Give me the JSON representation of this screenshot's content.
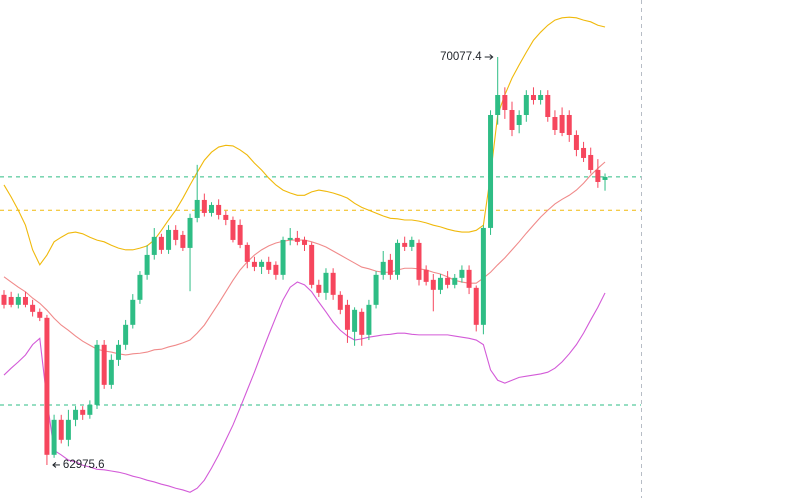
{
  "chart_data": {
    "type": "candlestick",
    "up_color": "#2ebd85",
    "down_color": "#f6465d",
    "ylim": [
      62400,
      71070
    ],
    "open": [
      65937,
      65900,
      65763,
      65900,
      65763,
      65641,
      65537,
      63152,
      63761,
      63413,
      63761,
      63935,
      63848,
      64022,
      65067,
      64370,
      64805,
      65067,
      65415,
      65850,
      66285,
      66632,
      66946,
      66720,
      67067,
      66980,
      66754,
      67276,
      67589,
      67363,
      67502,
      67328,
      67241,
      67154,
      66806,
      66511,
      66424,
      66511,
      66459,
      66285,
      66893,
      66928,
      66893,
      66806,
      66111,
      65972,
      66320,
      65937,
      65763,
      65293,
      65641,
      65241,
      65763,
      66285,
      66546,
      66285,
      66841,
      66772,
      66841,
      66372,
      66198,
      66024,
      66233,
      66111,
      66233,
      66372,
      66059,
      65415,
      67102,
      69068,
      69416,
      69155,
      68894,
      69068,
      69416,
      69329,
      69416,
      69033,
      69068,
      69068,
      68720,
      68494,
      68372,
      68111,
      67937
    ],
    "high": [
      66020,
      65990,
      65960,
      65990,
      65850,
      65700,
      65589,
      63850,
      63848,
      63935,
      64000,
      64000,
      64100,
      65150,
      65150,
      64900,
      65150,
      65500,
      65950,
      66350,
      66800,
      67100,
      67000,
      67150,
      67150,
      67050,
      67350,
      68200,
      67700,
      67550,
      67600,
      67400,
      67300,
      67250,
      66850,
      66600,
      66550,
      66600,
      66520,
      66950,
      67100,
      67050,
      66950,
      66850,
      66200,
      66400,
      66400,
      66000,
      65850,
      65720,
      65700,
      65850,
      66350,
      66700,
      66650,
      66900,
      66950,
      66950,
      66900,
      66450,
      66300,
      66300,
      66350,
      66300,
      66450,
      66450,
      66100,
      67150,
      69150,
      70077.4,
      69550,
      69300,
      69150,
      69500,
      69550,
      69500,
      69500,
      69150,
      69200,
      69150,
      68800,
      68600,
      68500,
      68300,
      68050
    ],
    "low": [
      65700,
      65720,
      65700,
      65720,
      65560,
      65480,
      62975.6,
      63100,
      63350,
      63300,
      63650,
      63760,
      63780,
      63950,
      64300,
      64300,
      64700,
      64980,
      65350,
      65780,
      66200,
      66550,
      66650,
      66650,
      66800,
      66700,
      66000,
      67200,
      67300,
      67300,
      67250,
      67150,
      66850,
      66750,
      66400,
      66350,
      66300,
      66300,
      66200,
      66200,
      66800,
      66800,
      66700,
      66050,
      65900,
      65850,
      65850,
      65600,
      65100,
      65050,
      65050,
      65150,
      65700,
      66200,
      66200,
      66200,
      66700,
      66700,
      66100,
      66100,
      65650,
      65950,
      66050,
      66050,
      66150,
      65950,
      65300,
      65250,
      66980,
      68900,
      69000,
      68700,
      68750,
      68950,
      69250,
      69250,
      68950,
      68720,
      68700,
      68600,
      68350,
      68250,
      68050,
      67800,
      67750
    ],
    "close": [
      65763,
      65763,
      65900,
      65763,
      65641,
      65537,
      63152,
      63761,
      63413,
      63761,
      63935,
      63848,
      64022,
      65067,
      64370,
      64805,
      65067,
      65415,
      65850,
      66285,
      66632,
      66946,
      66720,
      67067,
      66893,
      66754,
      67276,
      67589,
      67363,
      67502,
      67328,
      67241,
      66893,
      66806,
      66511,
      66424,
      66511,
      66372,
      66285,
      66893,
      66928,
      66859,
      66806,
      66111,
      65972,
      66320,
      65937,
      65676,
      65328,
      65676,
      65241,
      65763,
      66285,
      66511,
      66285,
      66841,
      66772,
      66893,
      66198,
      66163,
      66024,
      66233,
      66111,
      66233,
      66372,
      66059,
      65415,
      67102,
      69068,
      69416,
      69155,
      68807,
      69068,
      69416,
      69329,
      69416,
      69033,
      68807,
      68755,
      68720,
      68459,
      68320,
      68111,
      67902,
      67990
    ],
    "bands": [
      {
        "color": "#f0b90b",
        "values": [
          67850,
          67640,
          67410,
          67150,
          66720,
          66460,
          66630,
          66860,
          66940,
          67010,
          67030,
          67000,
          66940,
          66890,
          66860,
          66800,
          66750,
          66720,
          66720,
          66750,
          66790,
          66890,
          67060,
          67240,
          67410,
          67620,
          67850,
          68070,
          68280,
          68420,
          68510,
          68540,
          68530,
          68460,
          68370,
          68230,
          68110,
          67970,
          67850,
          67760,
          67710,
          67670,
          67670,
          67730,
          67760,
          67740,
          67710,
          67670,
          67620,
          67530,
          67460,
          67410,
          67360,
          67310,
          67270,
          67260,
          67240,
          67240,
          67220,
          67190,
          67150,
          67120,
          67080,
          67050,
          67030,
          67030,
          67060,
          67150,
          68020,
          69070,
          69420,
          69710,
          69940,
          70160,
          70370,
          70510,
          70630,
          70720,
          70760,
          70770,
          70760,
          70720,
          70690,
          70630,
          70600
        ]
      },
      {
        "color": "#f08a8a",
        "values": [
          66250,
          66160,
          66070,
          65990,
          65880,
          65790,
          65670,
          65530,
          65410,
          65320,
          65220,
          65130,
          65060,
          64990,
          64960,
          64940,
          64910,
          64890,
          64910,
          64920,
          64940,
          64980,
          64990,
          65030,
          65060,
          65100,
          65150,
          65270,
          65410,
          65600,
          65790,
          65990,
          66190,
          66370,
          66510,
          66630,
          66720,
          66790,
          66840,
          66870,
          66890,
          66890,
          66890,
          66860,
          66820,
          66770,
          66700,
          66630,
          66560,
          66490,
          66420,
          66390,
          66350,
          66330,
          66330,
          66370,
          66400,
          66400,
          66390,
          66370,
          66330,
          66300,
          66250,
          66190,
          66160,
          66140,
          66140,
          66230,
          66330,
          66460,
          66580,
          66720,
          66860,
          67010,
          67150,
          67290,
          67410,
          67520,
          67600,
          67670,
          67760,
          67880,
          68020,
          68140,
          68250
        ]
      },
      {
        "color": "#d35bd8",
        "values": [
          64540,
          64660,
          64770,
          64890,
          65070,
          65180,
          64110,
          63230,
          63150,
          63060,
          63030,
          62970,
          62940,
          62900,
          62890,
          62870,
          62850,
          62820,
          62780,
          62750,
          62710,
          62680,
          62640,
          62610,
          62570,
          62540,
          62500,
          62570,
          62710,
          62920,
          63150,
          63410,
          63670,
          63970,
          64280,
          64590,
          64920,
          65240,
          65550,
          65850,
          66070,
          66160,
          66110,
          65990,
          65810,
          65640,
          65460,
          65320,
          65220,
          65150,
          65170,
          65200,
          65220,
          65240,
          65250,
          65270,
          65270,
          65250,
          65240,
          65240,
          65240,
          65240,
          65240,
          65220,
          65200,
          65180,
          65150,
          65070,
          64630,
          64450,
          64400,
          64450,
          64500,
          64520,
          64540,
          64560,
          64590,
          64660,
          64770,
          64910,
          65070,
          65270,
          65500,
          65720,
          65970
        ]
      }
    ],
    "price_lines": [
      {
        "value": 67990,
        "color": "#2ebd85"
      },
      {
        "value": 67410,
        "color": "#f0b90b"
      },
      {
        "value": 64020,
        "color": "#2ebd85"
      }
    ],
    "annotations": [
      {
        "value": 70077.4,
        "label": "70077.4"
      },
      {
        "value": 62975.6,
        "label": "62975.6"
      }
    ]
  }
}
